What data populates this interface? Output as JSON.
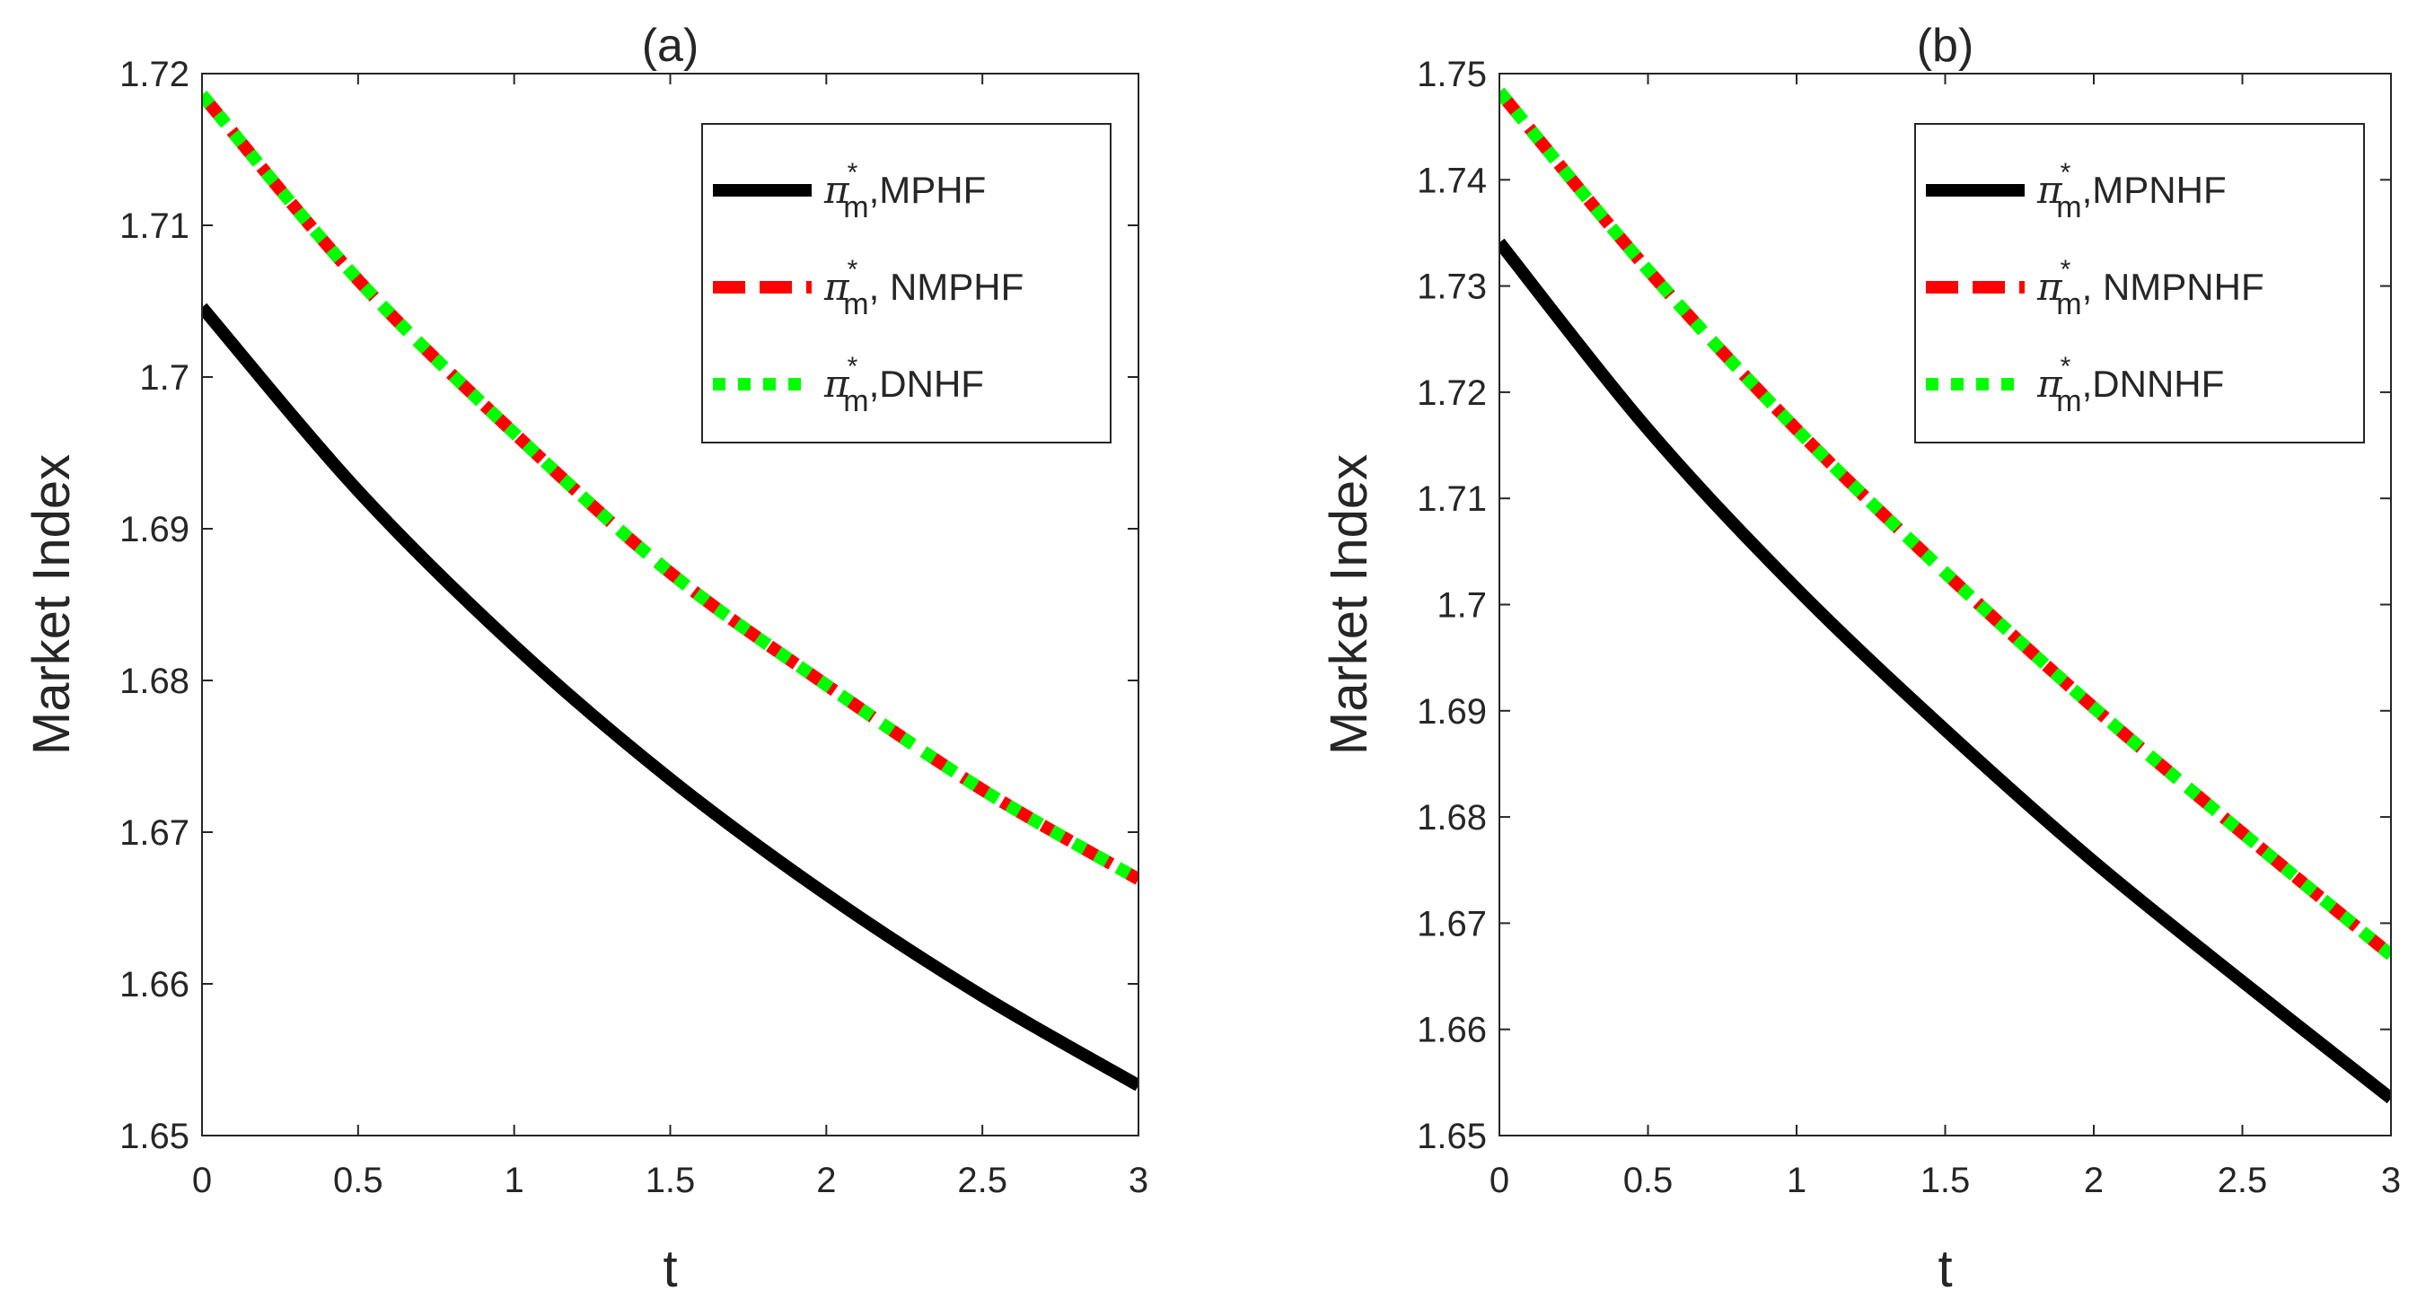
{
  "chart_data": [
    {
      "type": "line",
      "title": "(a)",
      "xlabel": "t",
      "ylabel": "Market Index",
      "xlim": [
        0,
        3
      ],
      "ylim": [
        1.65,
        1.72
      ],
      "xticks": [
        0,
        0.5,
        1,
        1.5,
        2,
        2.5,
        3
      ],
      "xtick_labels": [
        "0",
        "0.5",
        "1",
        "1.5",
        "2",
        "2.5",
        "3"
      ],
      "yticks": [
        1.65,
        1.66,
        1.67,
        1.68,
        1.69,
        1.7,
        1.71,
        1.72
      ],
      "ytick_labels": [
        "1.65",
        "1.66",
        "1.67",
        "1.68",
        "1.69",
        "1.7",
        "1.71",
        "1.72"
      ],
      "legend_position": "top-right",
      "x": [
        0,
        0.5,
        1,
        1.5,
        2,
        2.5,
        3
      ],
      "series": [
        {
          "name": "MPHF",
          "prefix": "π",
          "sup": "*",
          "sub": "m",
          "suffix": ",MPHF",
          "color": "#000000",
          "style": "solid",
          "values": [
            1.7046,
            1.6925,
            1.6823,
            1.6735,
            1.6659,
            1.6592,
            1.6533
          ]
        },
        {
          "name": "NMPHF",
          "prefix": "π",
          "sup": "*",
          "sub": "m",
          "suffix": ", NMPHF",
          "color": "#ff0000",
          "style": "dashed",
          "values": [
            1.7186,
            1.7064,
            1.6963,
            1.6871,
            1.6797,
            1.6728,
            1.6669
          ]
        },
        {
          "name": "DNHF",
          "prefix": "π",
          "sup": "*",
          "sub": "m",
          "suffix": ",DNHF",
          "color": "#00ff00",
          "style": "dotted",
          "values": [
            1.7186,
            1.7064,
            1.6963,
            1.6871,
            1.6797,
            1.6728,
            1.6669
          ]
        }
      ]
    },
    {
      "type": "line",
      "title": "(b)",
      "xlabel": "t",
      "ylabel": "Market Index",
      "xlim": [
        0,
        3
      ],
      "ylim": [
        1.65,
        1.75
      ],
      "xticks": [
        0,
        0.5,
        1,
        1.5,
        2,
        2.5,
        3
      ],
      "xtick_labels": [
        "0",
        "0.5",
        "1",
        "1.5",
        "2",
        "2.5",
        "3"
      ],
      "yticks": [
        1.65,
        1.66,
        1.67,
        1.68,
        1.69,
        1.7,
        1.71,
        1.72,
        1.73,
        1.74,
        1.75
      ],
      "ytick_labels": [
        "1.65",
        "1.66",
        "1.67",
        "1.68",
        "1.69",
        "1.7",
        "1.71",
        "1.72",
        "1.73",
        "1.74",
        "1.75"
      ],
      "legend_position": "top-right",
      "x": [
        0,
        0.5,
        1,
        1.5,
        2,
        2.5,
        3
      ],
      "series": [
        {
          "name": "MPNHF",
          "prefix": "π",
          "sup": "*",
          "sub": "m",
          "suffix": ",MPNHF",
          "color": "#000000",
          "style": "solid",
          "values": [
            1.7341,
            1.7165,
            1.7015,
            1.6882,
            1.6758,
            1.6645,
            1.6535
          ]
        },
        {
          "name": "NMPNHF",
          "prefix": "π",
          "sup": "*",
          "sub": "m",
          "suffix": ", NMPNHF",
          "color": "#ff0000",
          "style": "dashed",
          "values": [
            1.7483,
            1.7315,
            1.7165,
            1.703,
            1.6903,
            1.6785,
            1.667
          ]
        },
        {
          "name": "DNNHF",
          "prefix": "π",
          "sup": "*",
          "sub": "m",
          "suffix": ",DNNHF",
          "color": "#00ff00",
          "style": "dotted",
          "values": [
            1.7483,
            1.7315,
            1.7165,
            1.703,
            1.6903,
            1.6785,
            1.667
          ]
        }
      ]
    }
  ]
}
